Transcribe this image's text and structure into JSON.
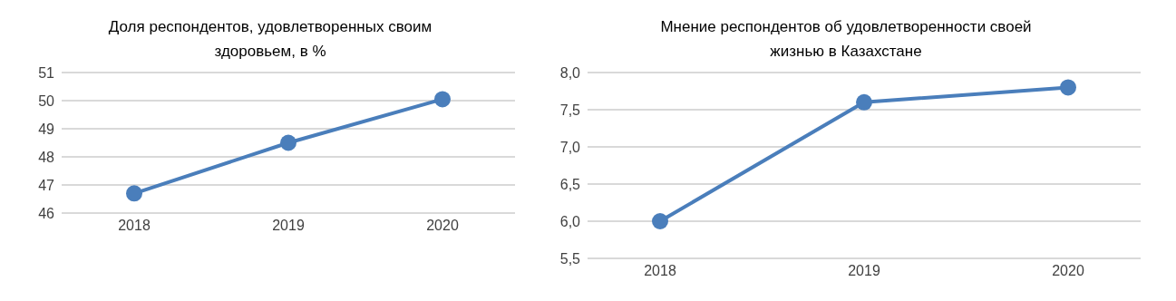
{
  "chart_data": [
    {
      "type": "line",
      "title": "Доля респондентов, удовлетворенных своим здоровьем, в %",
      "categories": [
        "2018",
        "2019",
        "2020"
      ],
      "series": [
        {
          "color": "#4a7ebb",
          "values": [
            46.7,
            48.5,
            50.05
          ]
        }
      ],
      "ylim": [
        46,
        51
      ],
      "yticks": [
        46,
        47,
        48,
        49,
        50,
        51
      ],
      "grid": "y",
      "marker": "circle"
    },
    {
      "type": "line",
      "title": "Мнение респондентов об удовлетворенности своей жизнью в Казахстане",
      "categories": [
        "2018",
        "2019",
        "2020"
      ],
      "series": [
        {
          "color": "#4a7ebb",
          "values": [
            6.0,
            7.6,
            7.8
          ]
        }
      ],
      "ylim": [
        5.5,
        8.0
      ],
      "yticks": [
        {
          "value": 5.5,
          "label": "5,5"
        },
        {
          "value": 6.0,
          "label": "6,0"
        },
        {
          "value": 6.5,
          "label": "6,5"
        },
        {
          "value": 7.0,
          "label": "7,0"
        },
        {
          "value": 7.5,
          "label": "7,5"
        },
        {
          "value": 8.0,
          "label": "8,0"
        }
      ],
      "grid": "y",
      "marker": "circle"
    }
  ]
}
